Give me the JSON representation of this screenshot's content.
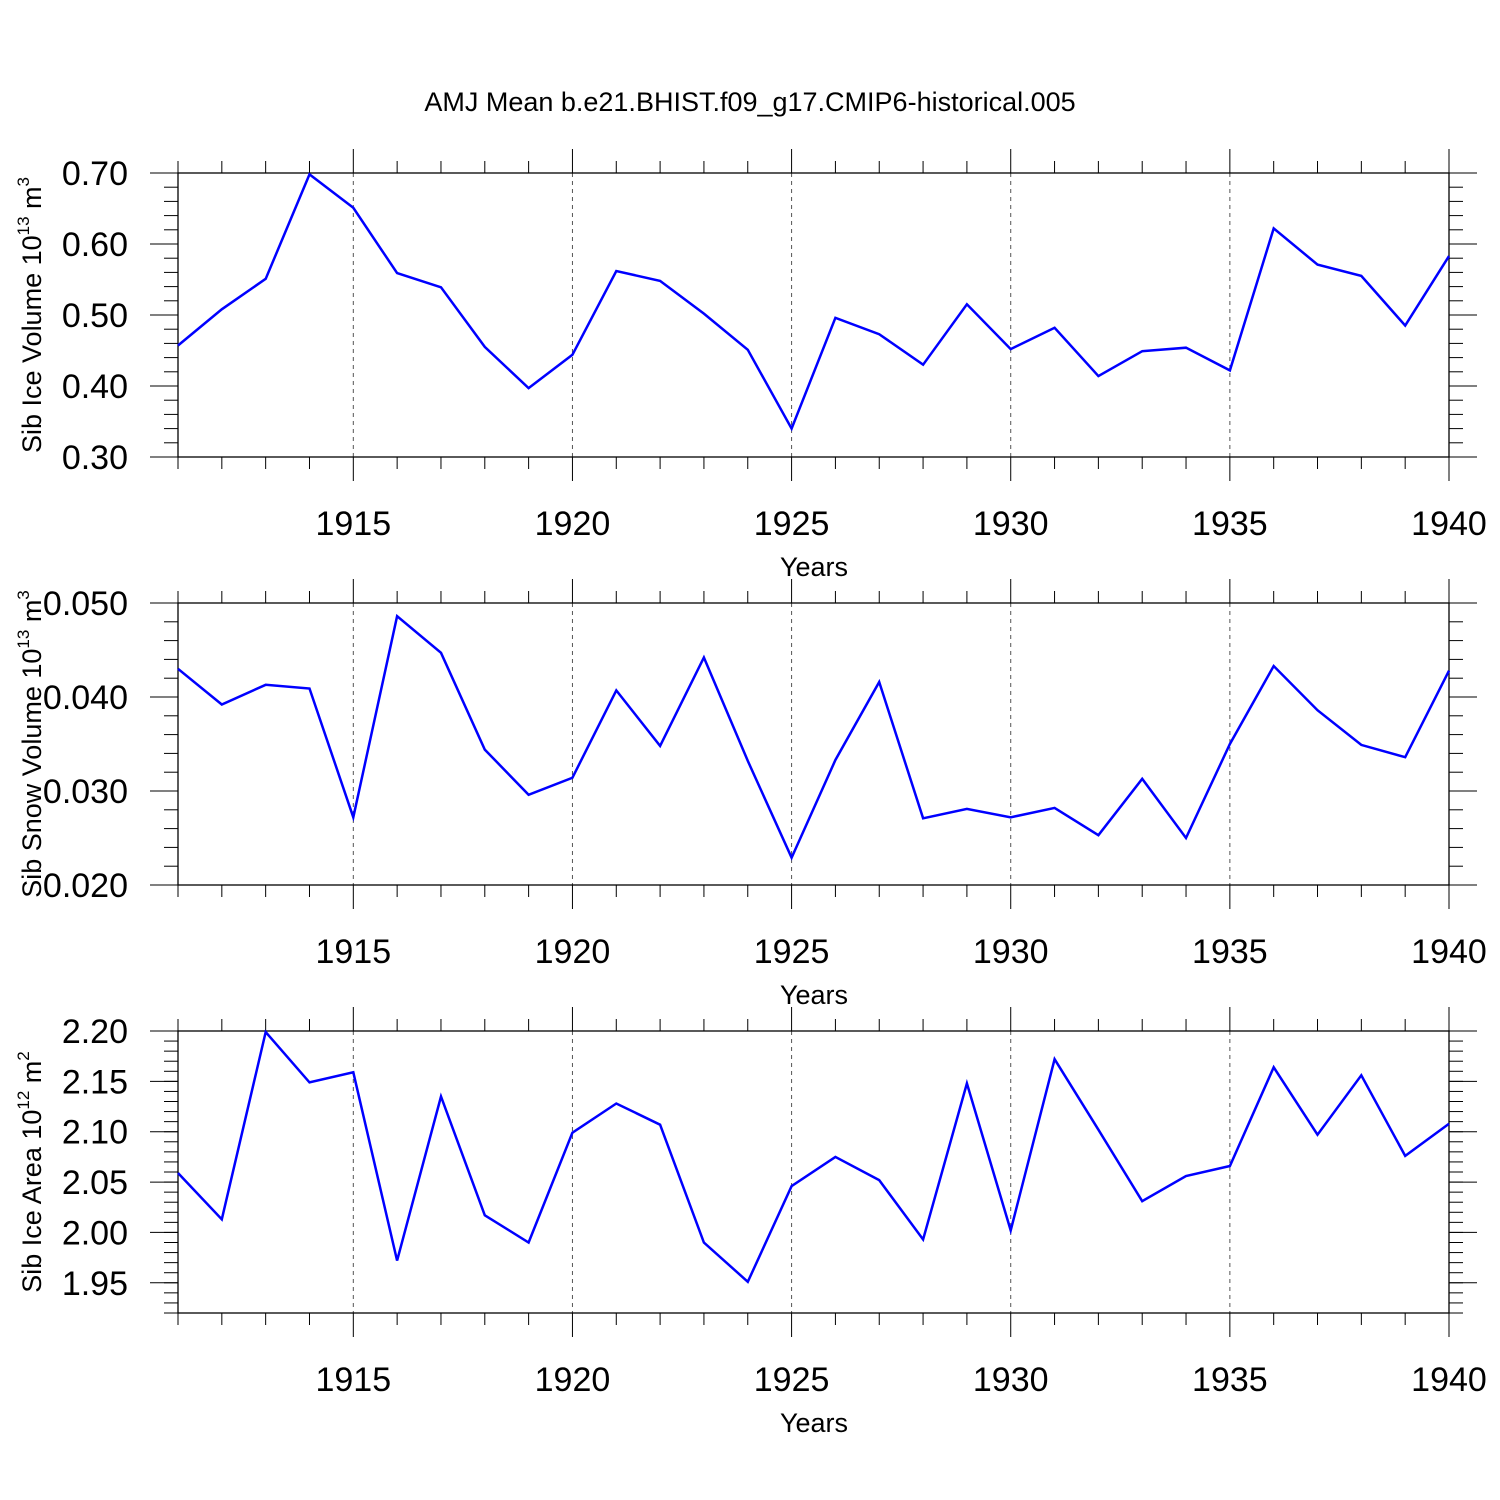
{
  "title": "AMJ Mean b.e21.BHIST.f09_g17.CMIP6-historical.005",
  "chart_data": [
    {
      "type": "line",
      "xlabel": "Years",
      "ylabel": "Sib Ice Volume 10",
      "ylabel_exponent": "13",
      "ylabel_unit": " m",
      "ylabel_unit_exponent": "3",
      "xlim": [
        1911,
        1940
      ],
      "ylim": [
        0.3,
        0.7
      ],
      "yticks": [
        "0.30",
        "0.40",
        "0.50",
        "0.60",
        "0.70"
      ],
      "ytick_values": [
        0.3,
        0.4,
        0.5,
        0.6,
        0.7
      ],
      "xticks": [
        "1915",
        "1920",
        "1925",
        "1930",
        "1935",
        "1940"
      ],
      "xtick_values": [
        1915,
        1920,
        1925,
        1930,
        1935,
        1940
      ],
      "grid": "vertical dashed at major x ticks",
      "color": "#0000ff",
      "x": [
        1911,
        1912,
        1913,
        1914,
        1915,
        1916,
        1917,
        1918,
        1919,
        1920,
        1921,
        1922,
        1923,
        1924,
        1925,
        1926,
        1927,
        1928,
        1929,
        1930,
        1931,
        1932,
        1933,
        1934,
        1935,
        1936,
        1937,
        1938,
        1939,
        1940
      ],
      "values": [
        0.457,
        0.508,
        0.551,
        0.698,
        0.651,
        0.559,
        0.539,
        0.455,
        0.397,
        0.444,
        0.562,
        0.548,
        0.502,
        0.451,
        0.34,
        0.496,
        0.473,
        0.43,
        0.515,
        0.452,
        0.482,
        0.414,
        0.449,
        0.454,
        0.422,
        0.622,
        0.571,
        0.555,
        0.485,
        0.583
      ]
    },
    {
      "type": "line",
      "xlabel": "Years",
      "ylabel": "Sib Snow Volume 10",
      "ylabel_exponent": "13",
      "ylabel_unit": " m",
      "ylabel_unit_exponent": "3",
      "xlim": [
        1911,
        1940
      ],
      "ylim": [
        0.02,
        0.05
      ],
      "yticks": [
        "0.020",
        "0.030",
        "0.040",
        "0.050"
      ],
      "ytick_values": [
        0.02,
        0.03,
        0.04,
        0.05
      ],
      "xticks": [
        "1915",
        "1920",
        "1925",
        "1930",
        "1935",
        "1940"
      ],
      "xtick_values": [
        1915,
        1920,
        1925,
        1930,
        1935,
        1940
      ],
      "grid": "vertical dashed at major x ticks",
      "color": "#0000ff",
      "x": [
        1911,
        1912,
        1913,
        1914,
        1915,
        1916,
        1917,
        1918,
        1919,
        1920,
        1921,
        1922,
        1923,
        1924,
        1925,
        1926,
        1927,
        1928,
        1929,
        1930,
        1931,
        1932,
        1933,
        1934,
        1935,
        1936,
        1937,
        1938,
        1939,
        1940
      ],
      "values": [
        0.043,
        0.0392,
        0.0413,
        0.0409,
        0.0272,
        0.0486,
        0.0447,
        0.0344,
        0.0296,
        0.0314,
        0.0407,
        0.0348,
        0.0442,
        0.0332,
        0.0229,
        0.0333,
        0.0416,
        0.0271,
        0.0281,
        0.0272,
        0.0282,
        0.0253,
        0.0313,
        0.025,
        0.035,
        0.0433,
        0.0386,
        0.0349,
        0.0336,
        0.0428
      ]
    },
    {
      "type": "line",
      "xlabel": "Years",
      "ylabel": "Sib Ice Area 10",
      "ylabel_exponent": "12",
      "ylabel_unit": " m",
      "ylabel_unit_exponent": "2",
      "xlim": [
        1911,
        1940
      ],
      "ylim": [
        1.92,
        2.2
      ],
      "yticks": [
        "1.95",
        "2.00",
        "2.05",
        "2.10",
        "2.15",
        "2.20"
      ],
      "ytick_values": [
        1.95,
        2.0,
        2.05,
        2.1,
        2.15,
        2.2
      ],
      "xticks": [
        "1915",
        "1920",
        "1925",
        "1930",
        "1935",
        "1940"
      ],
      "xtick_values": [
        1915,
        1920,
        1925,
        1930,
        1935,
        1940
      ],
      "grid": "vertical dashed at major x ticks",
      "color": "#0000ff",
      "x": [
        1911,
        1912,
        1913,
        1914,
        1915,
        1916,
        1917,
        1918,
        1919,
        1920,
        1921,
        1922,
        1923,
        1924,
        1925,
        1926,
        1927,
        1928,
        1929,
        1930,
        1931,
        1932,
        1933,
        1934,
        1935,
        1936,
        1937,
        1938,
        1939,
        1940
      ],
      "values": [
        2.059,
        2.013,
        2.199,
        2.149,
        2.159,
        1.972,
        2.135,
        2.017,
        1.99,
        2.099,
        2.128,
        2.107,
        1.99,
        1.951,
        2.046,
        2.075,
        2.052,
        1.993,
        2.148,
        2.002,
        2.172,
        2.102,
        2.031,
        2.056,
        2.066,
        2.164,
        2.097,
        2.156,
        2.076,
        2.108
      ]
    }
  ]
}
